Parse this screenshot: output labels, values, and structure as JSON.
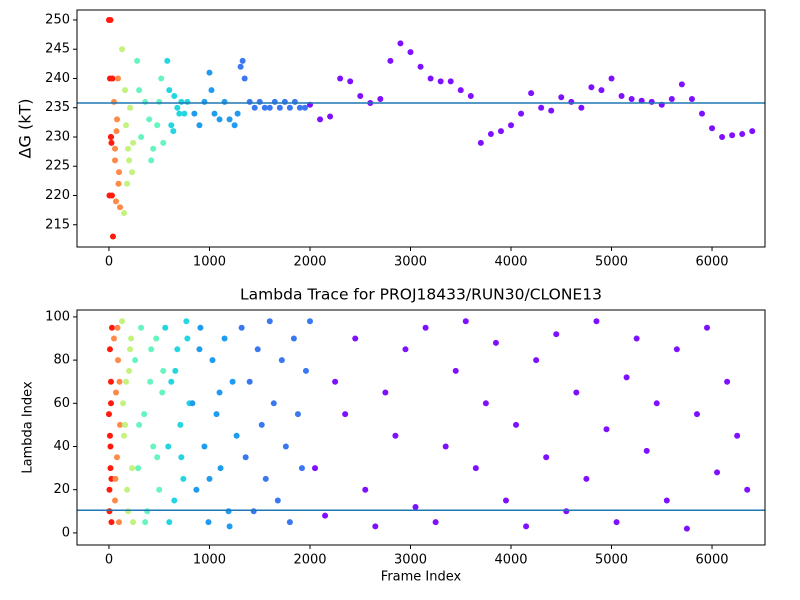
{
  "chart_data": [
    {
      "type": "scatter",
      "ylabel": "ΔG (kT)",
      "xlim": [
        -318,
        6527
      ],
      "ylim": [
        211.2,
        251.7
      ],
      "xticks": [
        0,
        1000,
        2000,
        3000,
        4000,
        5000,
        6000
      ],
      "yticks": [
        215,
        220,
        225,
        230,
        235,
        240,
        245,
        250
      ],
      "hline": {
        "value": 235.8,
        "color": "#1f77b4"
      },
      "series": [
        {
          "color": "#ff1a0d",
          "x": [
            0,
            10,
            20,
            30,
            15,
            25,
            5,
            35,
            20,
            40
          ],
          "values": [
            250,
            240,
            230,
            220,
            250,
            229,
            220,
            240,
            230,
            213
          ]
        },
        {
          "color": "#ff8a47",
          "x": [
            50,
            60,
            70,
            80,
            90,
            100,
            110,
            60,
            75,
            95
          ],
          "values": [
            236,
            226,
            219,
            233,
            240,
            224,
            218,
            228,
            231,
            222
          ]
        },
        {
          "color": "#c4f27e",
          "x": [
            130,
            150,
            170,
            190,
            210,
            230,
            160,
            200,
            240,
            180
          ],
          "values": [
            245,
            217,
            232,
            228,
            235,
            224,
            238,
            226,
            229,
            222
          ]
        },
        {
          "color": "#66f5be",
          "x": [
            280,
            320,
            360,
            400,
            440,
            480,
            520,
            300,
            420,
            500,
            540
          ],
          "values": [
            243,
            230,
            236,
            233,
            228,
            232,
            240,
            238,
            226,
            236,
            229
          ]
        },
        {
          "color": "#24d6e0",
          "x": [
            580,
            600,
            620,
            650,
            680,
            700,
            720,
            750,
            780,
            640
          ],
          "values": [
            243,
            238,
            232,
            237,
            235,
            234,
            236,
            234,
            236,
            231
          ]
        },
        {
          "color": "#1f9cf0",
          "x": [
            850,
            900,
            950,
            1000,
            1020,
            1050,
            1100,
            1150,
            1200,
            1250,
            1280
          ],
          "values": [
            234,
            232,
            236,
            241,
            238,
            234,
            233,
            236,
            233,
            232,
            234
          ]
        },
        {
          "color": "#3a78f2",
          "x": [
            1310,
            1330,
            1350,
            1400,
            1450,
            1500,
            1550,
            1600,
            1650,
            1700,
            1750,
            1800,
            1850,
            1900,
            1950
          ],
          "values": [
            242,
            243,
            240,
            236,
            235,
            236,
            235,
            235,
            236,
            235,
            236,
            235,
            236,
            235,
            235
          ]
        },
        {
          "color": "#7f0fff",
          "x": [
            2000,
            2100,
            2200,
            2300,
            2400,
            2500,
            2600,
            2700,
            2800,
            2900,
            3000,
            3100,
            3200,
            3300,
            3400,
            3500,
            3600,
            3700,
            3800,
            3900,
            4000,
            4100,
            4200,
            4300,
            4400,
            4500,
            4600,
            4700,
            4800,
            4900,
            5000,
            5100,
            5200,
            5300,
            5400,
            5500,
            5600,
            5700,
            5800,
            5900,
            6000,
            6100,
            6200,
            6300,
            6400
          ],
          "values": [
            235.5,
            233,
            233.5,
            240,
            239.5,
            237,
            235.8,
            236.5,
            243,
            246,
            244.5,
            242,
            240,
            239.5,
            239.5,
            238,
            237,
            229,
            230.5,
            231,
            232,
            234,
            237.5,
            235,
            234.5,
            236.8,
            236,
            235,
            238.5,
            238,
            240,
            237,
            236.5,
            236.2,
            236,
            235.5,
            236.5,
            239,
            236.5,
            234,
            231.5,
            230,
            230.3,
            230.5,
            231
          ]
        }
      ]
    },
    {
      "type": "scatter",
      "title": "Lambda Trace for PROJ18433/RUN30/CLONE13",
      "xlabel": "Frame Index",
      "ylabel": "Lambda Index",
      "xlim": [
        -318,
        6527
      ],
      "ylim": [
        -5.6,
        103.2
      ],
      "xticks": [
        0,
        1000,
        2000,
        3000,
        4000,
        5000,
        6000
      ],
      "yticks": [
        0,
        20,
        40,
        60,
        80,
        100
      ],
      "hline": {
        "value": 10.5,
        "color": "#1f77b4"
      },
      "series": [
        {
          "color": "#ff1a0d",
          "x": [
            0,
            5,
            10,
            15,
            20,
            25,
            30,
            10,
            20,
            5,
            15,
            25
          ],
          "values": [
            55,
            20,
            85,
            30,
            60,
            5,
            95,
            45,
            70,
            10,
            40,
            25
          ]
        },
        {
          "color": "#ff8a47",
          "x": [
            50,
            60,
            70,
            80,
            90,
            100,
            110,
            65,
            85,
            105
          ],
          "values": [
            90,
            15,
            65,
            35,
            80,
            5,
            50,
            25,
            95,
            70
          ]
        },
        {
          "color": "#c4f27e",
          "x": [
            130,
            150,
            170,
            190,
            210,
            230,
            140,
            180,
            220,
            160,
            200,
            240
          ],
          "values": [
            98,
            45,
            70,
            10,
            85,
            30,
            60,
            20,
            90,
            50,
            75,
            5
          ]
        },
        {
          "color": "#66f5be",
          "x": [
            260,
            290,
            320,
            350,
            380,
            410,
            440,
            470,
            500,
            530,
            300,
            360,
            420,
            480,
            540
          ],
          "values": [
            80,
            30,
            95,
            55,
            10,
            70,
            40,
            90,
            20,
            65,
            50,
            5,
            85,
            35,
            75
          ]
        },
        {
          "color": "#24d6e0",
          "x": [
            560,
            590,
            620,
            650,
            680,
            710,
            740,
            770,
            800,
            600,
            660,
            720,
            780
          ],
          "values": [
            95,
            40,
            70,
            15,
            85,
            50,
            25,
            98,
            60,
            5,
            75,
            35,
            90
          ]
        },
        {
          "color": "#1f9cf0",
          "x": [
            830,
            870,
            910,
            950,
            990,
            1030,
            1070,
            1110,
            1150,
            1190,
            1230,
            1270,
            900,
            1000,
            1100,
            1200
          ],
          "values": [
            60,
            20,
            95,
            40,
            5,
            80,
            55,
            30,
            90,
            10,
            70,
            45,
            85,
            25,
            65,
            3
          ]
        },
        {
          "color": "#3a78f2",
          "x": [
            1320,
            1360,
            1400,
            1440,
            1480,
            1520,
            1560,
            1600,
            1640,
            1680,
            1720,
            1760,
            1800,
            1840,
            1880,
            1920,
            1960,
            2000
          ],
          "values": [
            95,
            35,
            70,
            10,
            85,
            50,
            25,
            98,
            60,
            15,
            80,
            40,
            5,
            90,
            55,
            30,
            75,
            98
          ]
        },
        {
          "color": "#7f0fff",
          "x": [
            2050,
            2150,
            2250,
            2350,
            2450,
            2550,
            2650,
            2750,
            2850,
            2950,
            3050,
            3150,
            3250,
            3350,
            3450,
            3550,
            3650,
            3750,
            3850,
            3950,
            4050,
            4150,
            4250,
            4350,
            4450,
            4550,
            4650,
            4750,
            4850,
            4950,
            5050,
            5150,
            5250,
            5350,
            5450,
            5550,
            5650,
            5750,
            5850,
            5950,
            6050,
            6150,
            6250,
            6350
          ],
          "values": [
            30,
            8,
            70,
            55,
            90,
            20,
            3,
            65,
            45,
            85,
            12,
            95,
            5,
            40,
            75,
            98,
            30,
            60,
            88,
            15,
            50,
            3,
            80,
            35,
            92,
            10,
            65,
            25,
            98,
            48,
            5,
            72,
            90,
            38,
            60,
            15,
            85,
            2,
            55,
            95,
            28,
            70,
            45,
            20
          ]
        }
      ]
    }
  ]
}
